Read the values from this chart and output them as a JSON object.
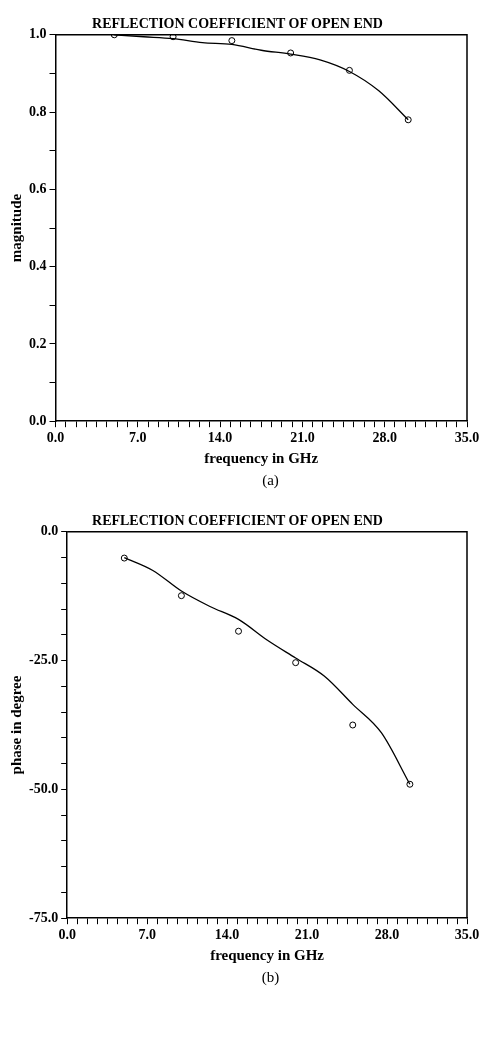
{
  "chart_data": [
    {
      "type": "line",
      "title": "REFLECTION COEFFICIENT OF OPEN END",
      "xlabel": "frequency in GHz",
      "ylabel": "magnitude",
      "xlim": [
        0,
        35
      ],
      "ylim": [
        0,
        1
      ],
      "xticks": [
        {
          "value": 0,
          "label": "0.0"
        },
        {
          "value": 0.875,
          "label": null
        },
        {
          "value": 1.75,
          "label": null
        },
        {
          "value": 2.625,
          "label": null
        },
        {
          "value": 3.5,
          "label": null
        },
        {
          "value": 4.375,
          "label": null
        },
        {
          "value": 5.25,
          "label": null
        },
        {
          "value": 6.125,
          "label": null
        },
        {
          "value": 7,
          "label": "7.0"
        },
        {
          "value": 7.875,
          "label": null
        },
        {
          "value": 8.75,
          "label": null
        },
        {
          "value": 9.625,
          "label": null
        },
        {
          "value": 10.5,
          "label": null
        },
        {
          "value": 11.375,
          "label": null
        },
        {
          "value": 12.25,
          "label": null
        },
        {
          "value": 13.125,
          "label": null
        },
        {
          "value": 14,
          "label": "14.0"
        },
        {
          "value": 14.875,
          "label": null
        },
        {
          "value": 15.75,
          "label": null
        },
        {
          "value": 16.625,
          "label": null
        },
        {
          "value": 17.5,
          "label": null
        },
        {
          "value": 18.375,
          "label": null
        },
        {
          "value": 19.25,
          "label": null
        },
        {
          "value": 20.125,
          "label": null
        },
        {
          "value": 21,
          "label": "21.0"
        },
        {
          "value": 21.875,
          "label": null
        },
        {
          "value": 22.75,
          "label": null
        },
        {
          "value": 23.625,
          "label": null
        },
        {
          "value": 24.5,
          "label": null
        },
        {
          "value": 25.375,
          "label": null
        },
        {
          "value": 26.25,
          "label": null
        },
        {
          "value": 27.125,
          "label": null
        },
        {
          "value": 28,
          "label": "28.0"
        },
        {
          "value": 28.875,
          "label": null
        },
        {
          "value": 29.75,
          "label": null
        },
        {
          "value": 30.625,
          "label": null
        },
        {
          "value": 31.5,
          "label": null
        },
        {
          "value": 32.375,
          "label": null
        },
        {
          "value": 33.25,
          "label": null
        },
        {
          "value": 34.125,
          "label": null
        },
        {
          "value": 35,
          "label": "35.0"
        }
      ],
      "yticks": [
        {
          "value": 0,
          "label": "0.0"
        },
        {
          "value": 0.1,
          "label": null
        },
        {
          "value": 0.2,
          "label": "0.2"
        },
        {
          "value": 0.3,
          "label": null
        },
        {
          "value": 0.4,
          "label": "0.4"
        },
        {
          "value": 0.5,
          "label": null
        },
        {
          "value": 0.6,
          "label": "0.6"
        },
        {
          "value": 0.7,
          "label": null
        },
        {
          "value": 0.8,
          "label": "0.8"
        },
        {
          "value": 0.9,
          "label": null
        },
        {
          "value": 1,
          "label": "1.0"
        }
      ],
      "series": [
        {
          "type": "scatter",
          "color": "#000000",
          "marker": "circle",
          "x": [
            5,
            10,
            15,
            20,
            25,
            30
          ],
          "values": [
            1.0,
            0.995,
            0.985,
            0.953,
            0.908,
            0.78
          ]
        },
        {
          "type": "line",
          "color": "#000000",
          "marker": "none",
          "x": [
            5,
            7.5,
            10,
            12.5,
            15,
            17.5,
            20,
            22.5,
            25,
            27.5,
            30
          ],
          "values": [
            1.0,
            0.995,
            0.99,
            0.98,
            0.975,
            0.96,
            0.95,
            0.935,
            0.905,
            0.855,
            0.78
          ]
        }
      ],
      "annotations": [
        "(a)"
      ]
    },
    {
      "type": "line",
      "title": "REFLECTION COEFFICIENT OF OPEN END",
      "xlabel": "frequency in GHz",
      "ylabel": "phase in degree",
      "xlim": [
        0,
        35
      ],
      "ylim": [
        -75,
        0
      ],
      "xticks": [
        {
          "value": 0,
          "label": "0.0"
        },
        {
          "value": 0.875,
          "label": null
        },
        {
          "value": 1.75,
          "label": null
        },
        {
          "value": 2.625,
          "label": null
        },
        {
          "value": 3.5,
          "label": null
        },
        {
          "value": 4.375,
          "label": null
        },
        {
          "value": 5.25,
          "label": null
        },
        {
          "value": 6.125,
          "label": null
        },
        {
          "value": 7,
          "label": "7.0"
        },
        {
          "value": 7.875,
          "label": null
        },
        {
          "value": 8.75,
          "label": null
        },
        {
          "value": 9.625,
          "label": null
        },
        {
          "value": 10.5,
          "label": null
        },
        {
          "value": 11.375,
          "label": null
        },
        {
          "value": 12.25,
          "label": null
        },
        {
          "value": 13.125,
          "label": null
        },
        {
          "value": 14,
          "label": "14.0"
        },
        {
          "value": 14.875,
          "label": null
        },
        {
          "value": 15.75,
          "label": null
        },
        {
          "value": 16.625,
          "label": null
        },
        {
          "value": 17.5,
          "label": null
        },
        {
          "value": 18.375,
          "label": null
        },
        {
          "value": 19.25,
          "label": null
        },
        {
          "value": 20.125,
          "label": null
        },
        {
          "value": 21,
          "label": "21.0"
        },
        {
          "value": 21.875,
          "label": null
        },
        {
          "value": 22.75,
          "label": null
        },
        {
          "value": 23.625,
          "label": null
        },
        {
          "value": 24.5,
          "label": null
        },
        {
          "value": 25.375,
          "label": null
        },
        {
          "value": 26.25,
          "label": null
        },
        {
          "value": 27.125,
          "label": null
        },
        {
          "value": 28,
          "label": "28.0"
        },
        {
          "value": 28.875,
          "label": null
        },
        {
          "value": 29.75,
          "label": null
        },
        {
          "value": 30.625,
          "label": null
        },
        {
          "value": 31.5,
          "label": null
        },
        {
          "value": 32.375,
          "label": null
        },
        {
          "value": 33.25,
          "label": null
        },
        {
          "value": 34.125,
          "label": null
        },
        {
          "value": 35,
          "label": "35.0"
        }
      ],
      "yticks": [
        {
          "value": -75,
          "label": "-75.0"
        },
        {
          "value": -70,
          "label": null
        },
        {
          "value": -65,
          "label": null
        },
        {
          "value": -60,
          "label": null
        },
        {
          "value": -55,
          "label": null
        },
        {
          "value": -50,
          "label": "-50.0"
        },
        {
          "value": -45,
          "label": null
        },
        {
          "value": -40,
          "label": null
        },
        {
          "value": -35,
          "label": null
        },
        {
          "value": -30,
          "label": null
        },
        {
          "value": -25,
          "label": "-25.0"
        },
        {
          "value": -20,
          "label": null
        },
        {
          "value": -15,
          "label": null
        },
        {
          "value": -10,
          "label": null
        },
        {
          "value": -5,
          "label": null
        },
        {
          "value": 0,
          "label": "0.0"
        }
      ],
      "series": [
        {
          "type": "scatter",
          "color": "#000000",
          "marker": "circle",
          "x": [
            5,
            10,
            15,
            20,
            25,
            30
          ],
          "values": [
            -5.1,
            -12.4,
            -19.3,
            -25.4,
            -37.5,
            -49
          ]
        },
        {
          "type": "line",
          "color": "#000000",
          "marker": "none",
          "x": [
            5,
            7.5,
            10,
            12.5,
            15,
            17.5,
            20,
            22.5,
            25,
            27.5,
            30
          ],
          "values": [
            -5,
            -7.5,
            -11.5,
            -14.5,
            -17,
            -21,
            -24.5,
            -28,
            -33.5,
            -39,
            -49
          ]
        }
      ],
      "annotations": [
        "(b)"
      ]
    }
  ]
}
